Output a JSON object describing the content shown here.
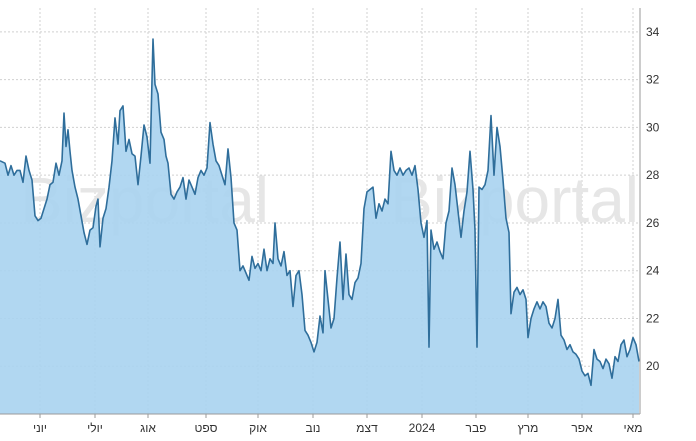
{
  "watermark": "Bizportal",
  "chart_data": {
    "type": "area",
    "title": "",
    "xlabel": "",
    "ylabel": "",
    "ylim": [
      18,
      35
    ],
    "y_ticks": [
      20,
      22,
      24,
      26,
      28,
      30,
      32,
      34
    ],
    "y_axis_position": "right",
    "grid": true,
    "legend": "none",
    "colors": {
      "line": "#2f6e9b",
      "fill": "#a9d3ef",
      "grid": "#d0d0d0"
    },
    "x_ticks": [
      {
        "label": "יוני",
        "pos": 40
      },
      {
        "label": "יולי",
        "pos": 95
      },
      {
        "label": "אוג",
        "pos": 148
      },
      {
        "label": "ספט",
        "pos": 206
      },
      {
        "label": "אוק",
        "pos": 258
      },
      {
        "label": "נוב",
        "pos": 313
      },
      {
        "label": "דצמ",
        "pos": 367
      },
      {
        "label": "2024",
        "pos": 422
      },
      {
        "label": "פבר",
        "pos": 476
      },
      {
        "label": "מרץ",
        "pos": 528
      },
      {
        "label": "אפר",
        "pos": 582
      },
      {
        "label": "מאי",
        "pos": 633
      }
    ],
    "series": [
      {
        "values": [
          [
            0,
            28.6
          ],
          [
            5,
            28.5
          ],
          [
            8,
            28.0
          ],
          [
            11,
            28.4
          ],
          [
            14,
            28.0
          ],
          [
            17,
            28.2
          ],
          [
            20,
            28.2
          ],
          [
            23,
            27.7
          ],
          [
            26,
            28.8
          ],
          [
            29,
            28.2
          ],
          [
            32,
            27.8
          ],
          [
            35,
            26.3
          ],
          [
            38,
            26.1
          ],
          [
            41,
            26.2
          ],
          [
            44,
            26.6
          ],
          [
            47,
            27.0
          ],
          [
            50,
            27.6
          ],
          [
            53,
            27.7
          ],
          [
            56,
            28.5
          ],
          [
            59,
            28.0
          ],
          [
            62,
            28.6
          ],
          [
            64,
            30.6
          ],
          [
            66,
            29.2
          ],
          [
            68,
            29.9
          ],
          [
            70,
            29.0
          ],
          [
            72,
            28.2
          ],
          [
            75,
            27.5
          ],
          [
            78,
            27.0
          ],
          [
            81,
            26.3
          ],
          [
            84,
            25.6
          ],
          [
            87,
            25.1
          ],
          [
            90,
            25.7
          ],
          [
            93,
            25.8
          ],
          [
            96,
            26.7
          ],
          [
            98,
            27.0
          ],
          [
            100,
            25.0
          ],
          [
            103,
            26.2
          ],
          [
            106,
            26.6
          ],
          [
            109,
            27.5
          ],
          [
            112,
            28.6
          ],
          [
            115,
            30.4
          ],
          [
            118,
            29.3
          ],
          [
            120,
            30.7
          ],
          [
            123,
            30.9
          ],
          [
            126,
            29.0
          ],
          [
            129,
            29.5
          ],
          [
            132,
            28.9
          ],
          [
            135,
            28.8
          ],
          [
            138,
            27.6
          ],
          [
            141,
            28.8
          ],
          [
            144,
            30.1
          ],
          [
            147,
            29.6
          ],
          [
            150,
            28.5
          ],
          [
            153,
            33.7
          ],
          [
            155,
            31.8
          ],
          [
            158,
            31.4
          ],
          [
            161,
            29.8
          ],
          [
            164,
            29.5
          ],
          [
            166,
            28.8
          ],
          [
            168,
            28.5
          ],
          [
            171,
            27.2
          ],
          [
            174,
            27.0
          ],
          [
            177,
            27.3
          ],
          [
            180,
            27.5
          ],
          [
            183,
            27.9
          ],
          [
            186,
            27.0
          ],
          [
            189,
            27.8
          ],
          [
            192,
            27.5
          ],
          [
            195,
            27.2
          ],
          [
            198,
            27.9
          ],
          [
            201,
            28.2
          ],
          [
            204,
            28.0
          ],
          [
            207,
            28.3
          ],
          [
            210,
            30.2
          ],
          [
            213,
            29.3
          ],
          [
            216,
            28.6
          ],
          [
            219,
            28.4
          ],
          [
            222,
            28.0
          ],
          [
            225,
            27.6
          ],
          [
            228,
            29.1
          ],
          [
            231,
            27.9
          ],
          [
            234,
            26.0
          ],
          [
            237,
            25.7
          ],
          [
            240,
            24.0
          ],
          [
            243,
            24.2
          ],
          [
            246,
            23.9
          ],
          [
            249,
            23.6
          ],
          [
            252,
            24.6
          ],
          [
            255,
            24.1
          ],
          [
            258,
            24.3
          ],
          [
            261,
            24.0
          ],
          [
            264,
            24.9
          ],
          [
            267,
            24.0
          ],
          [
            270,
            24.5
          ],
          [
            273,
            24.3
          ],
          [
            275,
            26.0
          ],
          [
            278,
            24.5
          ],
          [
            281,
            24.2
          ],
          [
            284,
            24.8
          ],
          [
            287,
            23.8
          ],
          [
            290,
            24.0
          ],
          [
            293,
            22.5
          ],
          [
            296,
            23.8
          ],
          [
            299,
            24.0
          ],
          [
            302,
            23.0
          ],
          [
            305,
            21.5
          ],
          [
            308,
            21.3
          ],
          [
            311,
            21.0
          ],
          [
            314,
            20.6
          ],
          [
            317,
            21.0
          ],
          [
            320,
            22.1
          ],
          [
            323,
            21.4
          ],
          [
            325,
            24.0
          ],
          [
            328,
            22.8
          ],
          [
            331,
            21.6
          ],
          [
            334,
            22.0
          ],
          [
            337,
            23.7
          ],
          [
            340,
            25.2
          ],
          [
            343,
            22.8
          ],
          [
            346,
            24.7
          ],
          [
            349,
            23.0
          ],
          [
            352,
            22.8
          ],
          [
            355,
            23.5
          ],
          [
            358,
            23.7
          ],
          [
            361,
            24.3
          ],
          [
            364,
            26.6
          ],
          [
            367,
            27.3
          ],
          [
            370,
            27.4
          ],
          [
            373,
            27.5
          ],
          [
            376,
            26.2
          ],
          [
            379,
            26.8
          ],
          [
            382,
            26.5
          ],
          [
            385,
            27.0
          ],
          [
            388,
            26.8
          ],
          [
            391,
            29.0
          ],
          [
            394,
            28.2
          ],
          [
            397,
            28.0
          ],
          [
            400,
            28.3
          ],
          [
            403,
            28.0
          ],
          [
            406,
            28.2
          ],
          [
            409,
            28.3
          ],
          [
            412,
            28.0
          ],
          [
            415,
            28.4
          ],
          [
            418,
            27.4
          ],
          [
            421,
            26.0
          ],
          [
            424,
            25.4
          ],
          [
            427,
            26.1
          ],
          [
            429,
            20.8
          ],
          [
            431,
            25.7
          ],
          [
            434,
            24.9
          ],
          [
            437,
            25.2
          ],
          [
            440,
            24.8
          ],
          [
            443,
            24.5
          ],
          [
            446,
            26.0
          ],
          [
            449,
            26.5
          ],
          [
            452,
            28.3
          ],
          [
            455,
            27.6
          ],
          [
            458,
            26.5
          ],
          [
            461,
            25.4
          ],
          [
            464,
            26.5
          ],
          [
            467,
            27.3
          ],
          [
            470,
            29.0
          ],
          [
            473,
            27.4
          ],
          [
            475,
            25.7
          ],
          [
            477,
            20.8
          ],
          [
            479,
            27.5
          ],
          [
            482,
            27.4
          ],
          [
            485,
            27.6
          ],
          [
            488,
            28.2
          ],
          [
            491,
            30.5
          ],
          [
            494,
            28.0
          ],
          [
            497,
            30.0
          ],
          [
            500,
            29.2
          ],
          [
            503,
            27.8
          ],
          [
            506,
            26.2
          ],
          [
            509,
            25.6
          ],
          [
            511,
            22.2
          ],
          [
            514,
            23.1
          ],
          [
            517,
            23.3
          ],
          [
            520,
            23.0
          ],
          [
            523,
            23.2
          ],
          [
            526,
            22.8
          ],
          [
            528,
            21.2
          ],
          [
            531,
            22.0
          ],
          [
            534,
            22.4
          ],
          [
            537,
            22.7
          ],
          [
            540,
            22.4
          ],
          [
            543,
            22.7
          ],
          [
            546,
            22.5
          ],
          [
            549,
            21.8
          ],
          [
            552,
            21.6
          ],
          [
            555,
            22.0
          ],
          [
            558,
            22.8
          ],
          [
            561,
            21.3
          ],
          [
            564,
            21.1
          ],
          [
            567,
            20.7
          ],
          [
            570,
            20.9
          ],
          [
            573,
            20.6
          ],
          [
            576,
            20.5
          ],
          [
            579,
            20.3
          ],
          [
            582,
            19.8
          ],
          [
            585,
            19.6
          ],
          [
            588,
            19.7
          ],
          [
            591,
            19.2
          ],
          [
            594,
            20.7
          ],
          [
            597,
            20.3
          ],
          [
            600,
            20.2
          ],
          [
            603,
            19.9
          ],
          [
            606,
            20.3
          ],
          [
            609,
            20.1
          ],
          [
            612,
            19.5
          ],
          [
            615,
            20.4
          ],
          [
            618,
            20.2
          ],
          [
            621,
            20.9
          ],
          [
            624,
            21.1
          ],
          [
            627,
            20.4
          ],
          [
            630,
            20.7
          ],
          [
            633,
            21.2
          ],
          [
            636,
            20.9
          ],
          [
            639,
            20.2
          ]
        ]
      }
    ]
  }
}
